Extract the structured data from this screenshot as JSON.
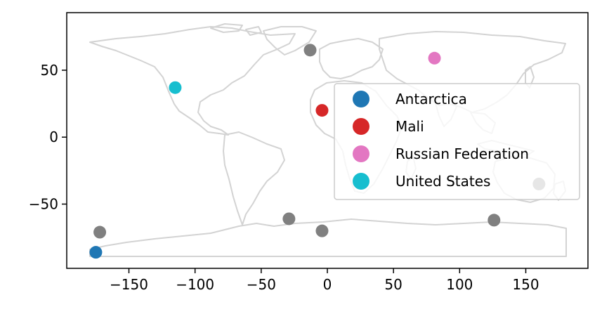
{
  "chart_data": {
    "type": "scatter",
    "title": "",
    "xlabel": "",
    "ylabel": "",
    "xlim": [
      -197,
      197
    ],
    "ylim": [
      -98,
      93
    ],
    "x_ticks": [
      -150,
      -100,
      -50,
      0,
      50,
      100,
      150
    ],
    "y_ticks": [
      50,
      0,
      -50
    ],
    "x_tick_labels": [
      "−150",
      "−100",
      "−50",
      "0",
      "50",
      "100",
      "150"
    ],
    "y_tick_labels": [
      "50",
      "0",
      "−50"
    ],
    "grid": false,
    "legend_position": "center-right",
    "basemap": "world country outlines",
    "basemap_color": "#d3d3d3",
    "unlabeled_color": "#808080",
    "series": [
      {
        "name": "Antarctica",
        "color": "#1f77b4",
        "points": [
          {
            "x": -175,
            "y": -86
          }
        ]
      },
      {
        "name": "Mali",
        "color": "#d62728",
        "points": [
          {
            "x": -4,
            "y": 20
          }
        ]
      },
      {
        "name": "Russian Federation",
        "color": "#e377c2",
        "points": [
          {
            "x": 81,
            "y": 59
          }
        ]
      },
      {
        "name": "United States",
        "color": "#17becf",
        "points": [
          {
            "x": -115,
            "y": 37
          }
        ]
      }
    ],
    "unlabeled_points": [
      {
        "x": -13,
        "y": 65
      },
      {
        "x": -172,
        "y": -71
      },
      {
        "x": -29,
        "y": -61
      },
      {
        "x": -4,
        "y": -70
      },
      {
        "x": 126,
        "y": -62
      },
      {
        "x": 160,
        "y": -35
      }
    ]
  }
}
